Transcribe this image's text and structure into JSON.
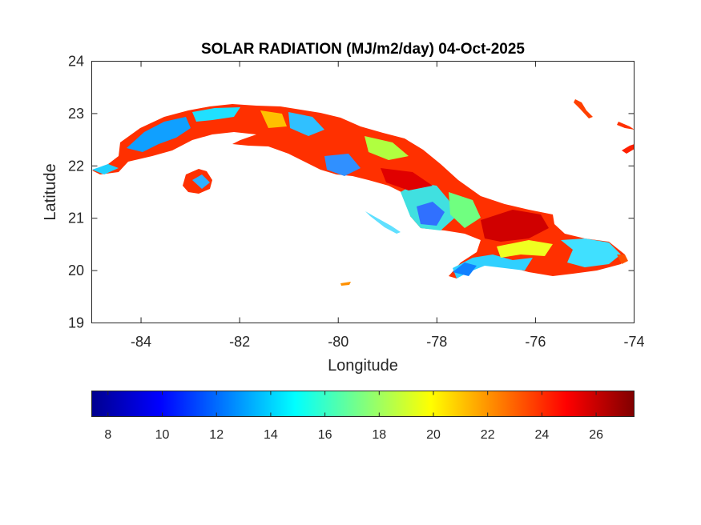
{
  "map": {
    "title": "SOLAR RADIATION (MJ/m2/day) 04-Oct-2025",
    "xlabel": "Longitude",
    "ylabel": "Latitude",
    "xlim": [
      -85,
      -74
    ],
    "ylim": [
      19,
      24
    ],
    "xticks": [
      -84,
      -82,
      -80,
      -78,
      -76,
      -74
    ],
    "yticks": [
      19,
      20,
      21,
      22,
      23,
      24
    ]
  },
  "colorbar": {
    "colormap": "jet",
    "range": [
      7.4,
      27.4
    ],
    "ticks": [
      8,
      10,
      12,
      14,
      16,
      18,
      20,
      22,
      24,
      26
    ]
  },
  "colors": {
    "low": "#00008f",
    "mid": "#00ffff",
    "high": "#800000"
  }
}
